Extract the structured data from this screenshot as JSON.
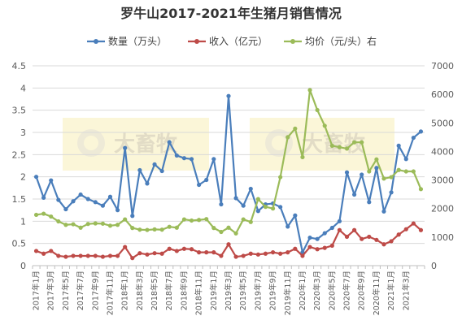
{
  "chart_data": {
    "type": "line",
    "title": "罗牛山2017-2021年生猪月销售情况",
    "categories": [
      "2017年1月",
      "2017年2月",
      "2017年3月",
      "2017年4月",
      "2017年5月",
      "2017年6月",
      "2017年7月",
      "2017年8月",
      "2017年9月",
      "2017年10月",
      "2017年11月",
      "2017年12月",
      "2018年1月",
      "2018年2月",
      "2018年3月",
      "2018年4月",
      "2018年5月",
      "2018年6月",
      "2018年7月",
      "2018年8月",
      "2018年9月",
      "2018年10月",
      "2018年11月",
      "2018年12月",
      "2019年1月",
      "2019年2月",
      "2019年3月",
      "2019年4月",
      "2019年5月",
      "2019年6月",
      "2019年7月",
      "2019年8月",
      "2019年9月",
      "2019年10月",
      "2019年11月",
      "2019年12月",
      "2020年1月",
      "2020年2月",
      "2020年3月",
      "2020年4月",
      "2020年5月",
      "2020年6月",
      "2020年7月",
      "2020年8月",
      "2020年9月",
      "2020年10月",
      "2020年11月",
      "2020年12月",
      "2021年1月",
      "2021年2月",
      "2021年3月",
      "2021年4月",
      "2021年5月"
    ],
    "x_tick_labels": [
      "2017年1月",
      "2017年3月",
      "2017年5月",
      "2017年7月",
      "2017年9月",
      "2017年11月",
      "2018年1月",
      "2018年3月",
      "2018年5月",
      "2018年7月",
      "2018年9月",
      "2018年11月",
      "2019年1月",
      "2019年3月",
      "2019年5月",
      "2019年7月",
      "2019年9月",
      "2019年11月",
      "2020年1月",
      "2020年3月",
      "2020年5月",
      "2020年7月",
      "2020年9月",
      "2020年11月",
      "2021年1月",
      "2021年3月"
    ],
    "y_left": {
      "min": 0,
      "max": 4.5,
      "step": 0.5,
      "tick_labels": [
        "0",
        "0.5",
        "1",
        "1.5",
        "2",
        "2.5",
        "3",
        "3.5",
        "4",
        "4.5"
      ]
    },
    "y_right": {
      "min": 0,
      "max": 7000,
      "step": 1000,
      "tick_labels": [
        "0",
        "1000",
        "2000",
        "3000",
        "4000",
        "5000",
        "6000",
        "7000"
      ]
    },
    "legend_position": "top",
    "grid": "horizontal",
    "series": [
      {
        "name": "数量（万头）",
        "axis": "left",
        "color": "#4a7ebb",
        "values": [
          2.0,
          1.53,
          1.92,
          1.48,
          1.27,
          1.45,
          1.6,
          1.5,
          1.43,
          1.35,
          1.55,
          1.25,
          2.65,
          1.12,
          2.15,
          1.85,
          2.28,
          2.13,
          2.78,
          2.48,
          2.42,
          2.4,
          1.82,
          1.93,
          2.4,
          1.38,
          3.82,
          1.52,
          1.35,
          1.73,
          1.23,
          1.38,
          1.4,
          1.32,
          0.88,
          1.13,
          0.3,
          0.63,
          0.6,
          0.73,
          0.85,
          1.0,
          2.1,
          1.6,
          2.05,
          1.43,
          2.2,
          1.22,
          1.65,
          2.7,
          2.4,
          2.88,
          3.02
        ]
      },
      {
        "name": "收入（亿元）",
        "axis": "left",
        "color": "#be4b48",
        "values": [
          0.33,
          0.27,
          0.33,
          0.22,
          0.2,
          0.22,
          0.22,
          0.22,
          0.22,
          0.2,
          0.22,
          0.22,
          0.42,
          0.17,
          0.28,
          0.25,
          0.28,
          0.27,
          0.38,
          0.33,
          0.38,
          0.37,
          0.3,
          0.3,
          0.3,
          0.22,
          0.48,
          0.2,
          0.22,
          0.27,
          0.25,
          0.27,
          0.3,
          0.27,
          0.3,
          0.38,
          0.22,
          0.42,
          0.37,
          0.4,
          0.45,
          0.8,
          0.65,
          0.8,
          0.6,
          0.65,
          0.58,
          0.48,
          0.55,
          0.7,
          0.82,
          0.95,
          0.8
        ]
      },
      {
        "name": "均价（元/头）右",
        "axis": "right",
        "color": "#9bbb59",
        "values": [
          1780,
          1820,
          1720,
          1550,
          1430,
          1450,
          1330,
          1460,
          1480,
          1470,
          1400,
          1430,
          1620,
          1320,
          1260,
          1250,
          1270,
          1260,
          1360,
          1330,
          1620,
          1580,
          1600,
          1630,
          1320,
          1180,
          1330,
          1130,
          1620,
          1530,
          2330,
          2060,
          2000,
          3100,
          4500,
          4800,
          3800,
          6150,
          5450,
          4900,
          4200,
          4150,
          4100,
          4320,
          4320,
          3300,
          3720,
          3050,
          3100,
          3350,
          3300,
          3300,
          2680
        ]
      }
    ],
    "watermark": "大畜牧"
  }
}
